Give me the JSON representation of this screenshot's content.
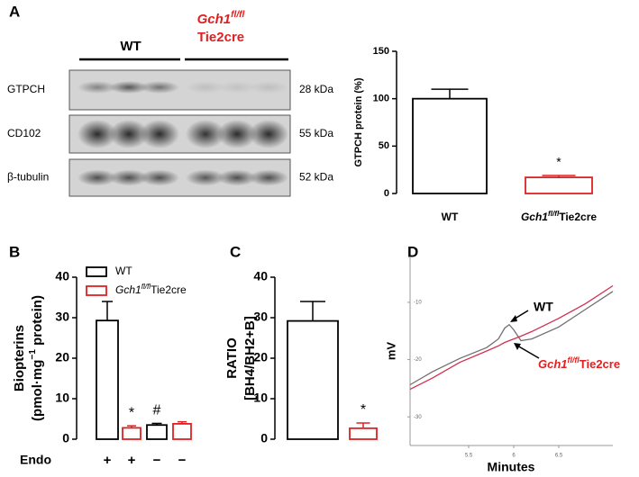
{
  "panels": [
    "A",
    "B",
    "C",
    "D"
  ],
  "blot": {
    "header": {
      "wt": "WT",
      "ko": [
        "Gch1",
        "fl/fl"
      ],
      "ko_line2": "Tie2cre"
    },
    "rows": [
      {
        "name": "GTPCH",
        "size": "28 kDa"
      },
      {
        "name": "CD102",
        "size": "55 kDa"
      },
      {
        "name": "β-tubulin",
        "size": "52 kDa"
      }
    ]
  },
  "chart_data": [
    {
      "type": "bar",
      "ylabel": "GTPCH protein (%)",
      "categories": [
        "WT",
        [
          "Gch1",
          "fl/fl",
          "Tie2cre"
        ]
      ],
      "values": [
        100,
        17
      ],
      "errors": [
        10,
        2
      ],
      "colors": [
        "#000000",
        "#e02020"
      ],
      "value_annotations": [
        null,
        "*"
      ],
      "ylim": [
        0,
        150
      ],
      "yticks": [
        0,
        50,
        100,
        150
      ]
    },
    {
      "type": "bar",
      "ylabel": [
        "Biopterins",
        [
          "(pmol·mg",
          "−1",
          " protein)"
        ]
      ],
      "xlabel": "Endo",
      "categories": [
        "+",
        "+",
        "−",
        "−"
      ],
      "values": [
        29.3,
        2.8,
        3.5,
        3.8
      ],
      "errors": [
        4.7,
        0.5,
        0.4,
        0.5
      ],
      "colors": [
        "#000000",
        "#e02020",
        "#000000",
        "#e02020"
      ],
      "value_annotations": [
        null,
        "*",
        "#",
        null
      ],
      "legend": [
        {
          "name": "WT",
          "color": "#000000"
        },
        {
          "name": [
            "Gch1",
            "fl/fl",
            "Tie2cre"
          ],
          "color": "#e02020"
        }
      ],
      "ylim": [
        0,
        40
      ],
      "yticks": [
        0,
        10,
        20,
        30,
        40
      ]
    },
    {
      "type": "bar",
      "ylabel": [
        "RATIO",
        "[BH4/BH2+B]"
      ],
      "values": [
        29.2,
        2.7
      ],
      "errors": [
        4.8,
        1.3
      ],
      "colors": [
        "#000000",
        "#e02020"
      ],
      "value_annotations": [
        null,
        "*"
      ],
      "ylim": [
        0,
        40
      ],
      "yticks": [
        0,
        10,
        20,
        30,
        40
      ]
    },
    {
      "type": "line",
      "xlabel": "Minutes",
      "ylabel": "mV",
      "x": [
        4.85,
        5.1,
        5.4,
        5.7,
        5.83,
        5.9,
        5.95,
        6.0,
        6.08,
        6.2,
        6.5,
        6.8,
        7.1
      ],
      "series": [
        {
          "name": "WT",
          "color": "#707070",
          "values": [
            -24.4,
            -22.1,
            -19.8,
            -17.9,
            -16.4,
            -14.5,
            -13.9,
            -14.8,
            -16.7,
            -16.4,
            -14.3,
            -11.2,
            -8.1
          ]
        },
        {
          "name": [
            "Gch1",
            "fl/fl",
            "Tie2cre"
          ],
          "color": "#d03050",
          "values": [
            -25.2,
            -23.2,
            -20.5,
            -18.5,
            -17.6,
            -17.0,
            -16.7,
            -16.4,
            -15.9,
            -15.1,
            -12.8,
            -10.2,
            -7.1
          ]
        }
      ],
      "xlim": [
        4.85,
        7.1
      ],
      "ylim": [
        -35,
        -2
      ],
      "xticks": [
        5.5,
        6,
        6.5
      ],
      "yticks": [
        -10,
        -20,
        -30
      ]
    }
  ]
}
